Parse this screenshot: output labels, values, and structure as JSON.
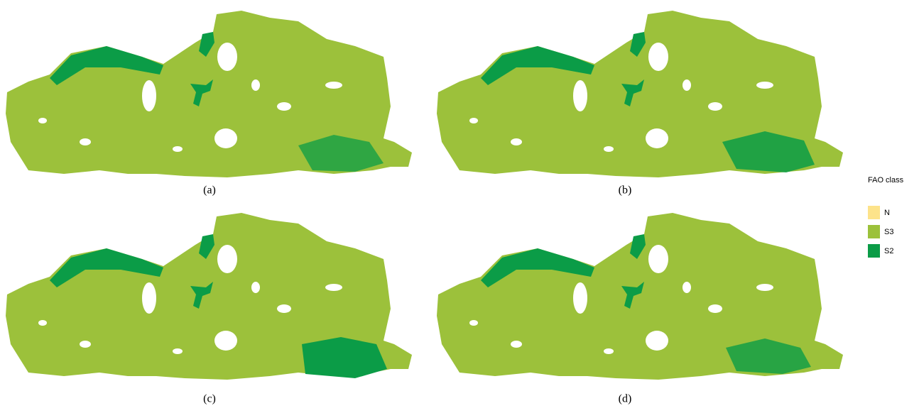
{
  "panels": [
    {
      "label": "(a)"
    },
    {
      "label": "(b)"
    },
    {
      "label": "(c)"
    },
    {
      "label": "(d)"
    }
  ],
  "legend": {
    "title": "FAO class",
    "items": [
      {
        "label": "N",
        "color": "#fde38a"
      },
      {
        "label": "S3",
        "color": "#9cc13b"
      },
      {
        "label": "S2",
        "color": "#0b9c47"
      }
    ]
  }
}
